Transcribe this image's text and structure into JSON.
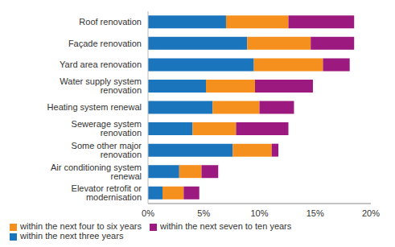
{
  "chart_data": {
    "type": "bar",
    "orientation": "horizontal",
    "stacked": true,
    "grid": false,
    "legend": "bottom",
    "categories": [
      "Roof renovation",
      "Façade renovation",
      "Yard area renovation",
      "Water supply system renovation",
      "Heating system renewal",
      "Sewerage system renovation",
      "Some other major renovation",
      "Air conditioning system renewal",
      "Elevator retrofit or modernisation"
    ],
    "series": [
      {
        "name": "within the next three years",
        "color": "#1a75bc",
        "values": [
          7.0,
          8.9,
          9.5,
          5.2,
          5.8,
          4.0,
          7.6,
          2.8,
          1.3
        ]
      },
      {
        "name": "within the next four to six years",
        "color": "#f5901e",
        "values": [
          5.6,
          5.7,
          6.2,
          4.4,
          4.2,
          3.9,
          3.5,
          2.0,
          1.9
        ]
      },
      {
        "name": "within the next seven to ten years",
        "color": "#9c1a7f",
        "values": [
          5.9,
          3.9,
          2.4,
          5.2,
          3.1,
          4.7,
          0.6,
          1.5,
          1.4
        ]
      }
    ],
    "xlim": [
      0,
      20
    ],
    "xticks": [
      {
        "value": 0,
        "label": "0%"
      },
      {
        "value": 5,
        "label": "5%"
      },
      {
        "value": 10,
        "label": "10%"
      },
      {
        "value": 15,
        "label": "15%"
      },
      {
        "value": 20,
        "label": "20%"
      }
    ]
  }
}
